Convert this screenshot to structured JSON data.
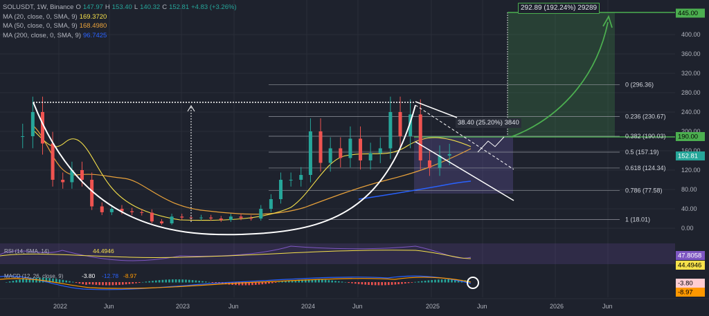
{
  "header": {
    "symbol": "SOLUSDT, 1W, Binance",
    "o_label": "O",
    "o_value": "147.97",
    "h_label": "H",
    "h_value": "153.40",
    "l_label": "L",
    "l_value": "140.32",
    "c_label": "C",
    "c_value": "152.81",
    "change": "+4.83 (+3.26%)",
    "ma1_label": "MA (20, close, 0, SMA, 9)",
    "ma1_value": "169.3720",
    "ma1_color": "#f6e14b",
    "ma2_label": "MA (50, close, 0, SMA, 9)",
    "ma2_value": "168.4980",
    "ma2_color": "#e9a23b",
    "ma3_label": "MA (200, close, 0, SMA, 9)",
    "ma3_value": "96.7425",
    "ma3_color": "#2962ff"
  },
  "colors": {
    "up": "#26a69a",
    "down": "#ef5350",
    "background": "#1e222d",
    "grid": "#2a2e39",
    "text": "#b2b5be",
    "target": "#4caf50",
    "wedge": "#6f5fb3"
  },
  "annotations": {
    "target_measure": "292.89 (192.24%) 29289",
    "wedge_measure": "38.40 (25.20%) 3840"
  },
  "chart_data": {
    "type": "candlestick",
    "symbol": "SOLUSDT",
    "interval": "1W",
    "y_axis_ticks": [
      "0.00",
      "40.00",
      "80.00",
      "120.00",
      "160.00",
      "200.00",
      "240.00",
      "280.00",
      "320.00",
      "360.00",
      "400.00"
    ],
    "x_axis_ticks": [
      "2022",
      "Jun",
      "2023",
      "Jun",
      "2024",
      "Jun",
      "2025",
      "Jun",
      "2026",
      "Jun"
    ],
    "ylim": [
      -20,
      460
    ],
    "price_levels": [
      {
        "label": "445.00",
        "value": 445.0,
        "color": "#4caf50"
      },
      {
        "label": "190.00",
        "value": 190.0,
        "color": "#4caf50"
      },
      {
        "label": "152.81",
        "value": 152.81,
        "color": "#26a69a"
      }
    ],
    "fibonacci": [
      {
        "ratio": "0",
        "label": "0 (296.36)",
        "value": 296.36
      },
      {
        "ratio": "0.236",
        "label": "0.236 (230.67)",
        "value": 230.67
      },
      {
        "ratio": "0.382",
        "label": "0.382 (190.03)",
        "value": 190.03
      },
      {
        "ratio": "0.5",
        "label": "0.5 (157.19)",
        "value": 157.19
      },
      {
        "ratio": "0.618",
        "label": "0.618 (124.34)",
        "value": 124.34
      },
      {
        "ratio": "0.786",
        "label": "0.786 (77.58)",
        "value": 77.58
      },
      {
        "ratio": "1",
        "label": "1 (18.01)",
        "value": 18.01
      }
    ],
    "rsi": {
      "label": "RSI (14, SMA, 14)",
      "value": "47.8058",
      "ma_value": "44.4946",
      "color": "#7e57c2",
      "ma_color": "#f6e14b"
    },
    "macd": {
      "label": "MACD (12, 26, close, 9)",
      "hist": "-3.80",
      "macd": "-12.78",
      "signal": "-8.97",
      "macd_color": "#2962ff",
      "signal_color": "#ff9800"
    },
    "price_series": [
      {
        "x": "2021-10",
        "y": 190
      },
      {
        "x": "2021-11",
        "y": 240
      },
      {
        "x": "2021-12",
        "y": 175
      },
      {
        "x": "2022-01",
        "y": 100
      },
      {
        "x": "2022-02",
        "y": 95
      },
      {
        "x": "2022-03",
        "y": 120
      },
      {
        "x": "2022-04",
        "y": 100
      },
      {
        "x": "2022-05",
        "y": 45
      },
      {
        "x": "2022-06",
        "y": 33
      },
      {
        "x": "2022-07",
        "y": 40
      },
      {
        "x": "2022-08",
        "y": 35
      },
      {
        "x": "2022-09",
        "y": 33
      },
      {
        "x": "2022-10",
        "y": 32
      },
      {
        "x": "2022-11",
        "y": 14
      },
      {
        "x": "2022-12",
        "y": 10
      },
      {
        "x": "2023-01",
        "y": 24
      },
      {
        "x": "2023-02",
        "y": 22
      },
      {
        "x": "2023-03",
        "y": 21
      },
      {
        "x": "2023-04",
        "y": 22
      },
      {
        "x": "2023-05",
        "y": 20
      },
      {
        "x": "2023-06",
        "y": 17
      },
      {
        "x": "2023-07",
        "y": 24
      },
      {
        "x": "2023-08",
        "y": 21
      },
      {
        "x": "2023-09",
        "y": 20
      },
      {
        "x": "2023-10",
        "y": 40
      },
      {
        "x": "2023-11",
        "y": 60
      },
      {
        "x": "2023-12",
        "y": 100
      },
      {
        "x": "2024-01",
        "y": 100
      },
      {
        "x": "2024-02",
        "y": 110
      },
      {
        "x": "2024-03",
        "y": 200
      },
      {
        "x": "2024-04",
        "y": 135
      },
      {
        "x": "2024-05",
        "y": 165
      },
      {
        "x": "2024-06",
        "y": 145
      },
      {
        "x": "2024-07",
        "y": 185
      },
      {
        "x": "2024-08",
        "y": 140
      },
      {
        "x": "2024-09",
        "y": 155
      },
      {
        "x": "2024-10",
        "y": 165
      },
      {
        "x": "2024-11",
        "y": 240
      },
      {
        "x": "2024-12",
        "y": 190
      },
      {
        "x": "2025-01",
        "y": 235
      },
      {
        "x": "2025-02",
        "y": 140
      },
      {
        "x": "2025-03",
        "y": 125
      },
      {
        "x": "2025-04",
        "y": 150
      },
      {
        "x": "2025-05",
        "y": 153
      }
    ]
  }
}
